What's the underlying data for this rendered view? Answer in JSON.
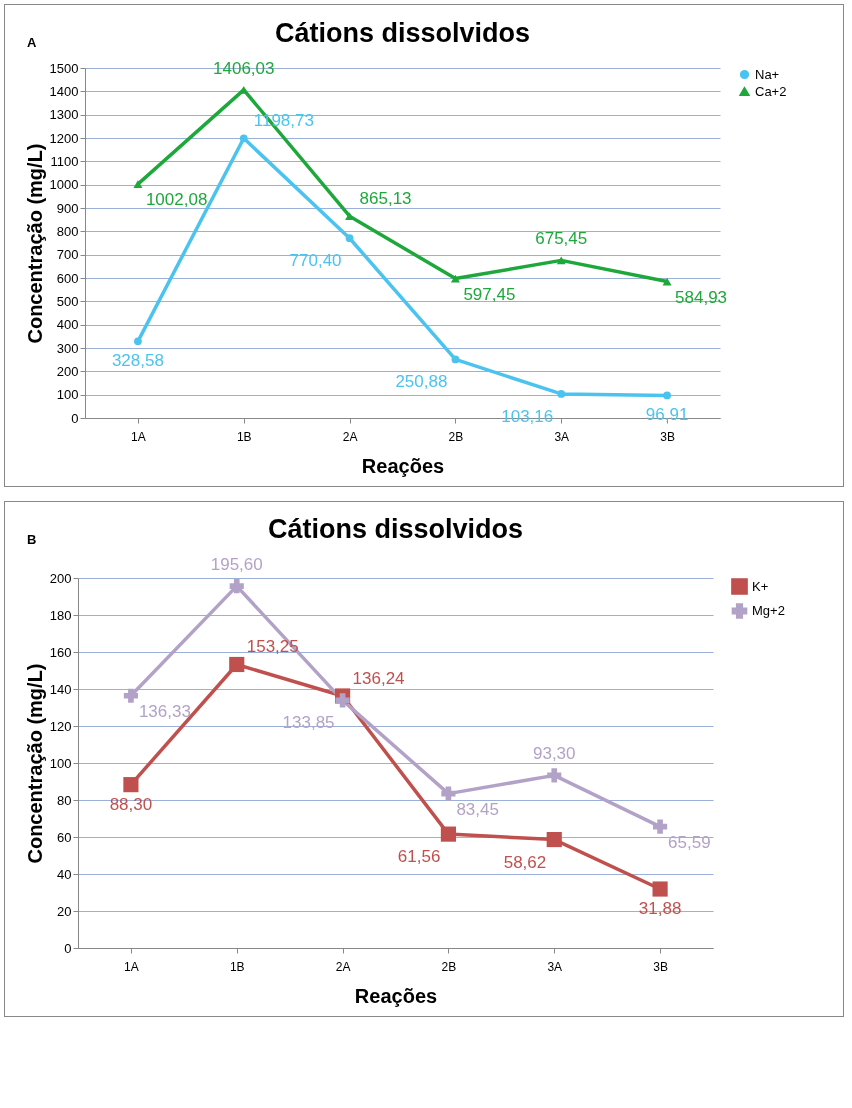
{
  "chart_data": [
    {
      "type": "line",
      "title": "Cátions dissolvidos",
      "xlabel": "Reações",
      "ylabel": "Concentração (mg/L)",
      "annotations": [
        "A"
      ],
      "categories": [
        "1A",
        "1B",
        "2A",
        "2B",
        "3A",
        "3B"
      ],
      "ylim": [
        0,
        1500
      ],
      "yticks": [
        0,
        100,
        200,
        300,
        400,
        500,
        600,
        700,
        800,
        900,
        1000,
        1100,
        1200,
        1300,
        1400,
        1500
      ],
      "grid": "y",
      "legend": "right",
      "series": [
        {
          "name": "Na+",
          "color": "#4bc3ef",
          "marker": "circle",
          "values": [
            328.58,
            1198.73,
            770.4,
            250.88,
            103.16,
            96.91
          ],
          "value_labels": [
            "328,58",
            "1198,73",
            "770,40",
            "250,88",
            "103,16",
            "96,91"
          ]
        },
        {
          "name": "Ca+2",
          "color": "#1ea83c",
          "marker": "triangle",
          "values": [
            1002.08,
            1406.03,
            865.13,
            597.45,
            675.45,
            584.93
          ],
          "value_labels": [
            "1002,08",
            "1406,03",
            "865,13",
            "597,45",
            "675,45",
            "584,93"
          ]
        }
      ]
    },
    {
      "type": "line",
      "title": "Cátions dissolvidos",
      "xlabel": "Reações",
      "ylabel": "Concentração (mg/L)",
      "annotations": [
        "B"
      ],
      "categories": [
        "1A",
        "1B",
        "2A",
        "2B",
        "3A",
        "3B"
      ],
      "ylim": [
        0,
        200
      ],
      "yticks": [
        0,
        20,
        40,
        60,
        80,
        100,
        120,
        140,
        160,
        180,
        200
      ],
      "grid": "y",
      "legend": "right",
      "series": [
        {
          "name": "K+",
          "color": "#c0504d",
          "marker": "square",
          "values": [
            88.3,
            153.25,
            136.24,
            61.56,
            58.62,
            31.88
          ],
          "value_labels": [
            "88,30",
            "153,25",
            "136,24",
            "61,56",
            "58,62",
            "31,88"
          ]
        },
        {
          "name": "Mg+2",
          "color": "#b3a2c7",
          "marker": "cross",
          "values": [
            136.33,
            195.6,
            133.85,
            83.45,
            93.3,
            65.59
          ],
          "value_labels": [
            "136,33",
            "195,60",
            "133,85",
            "83,45",
            "93,30",
            "65,59"
          ]
        }
      ]
    }
  ]
}
